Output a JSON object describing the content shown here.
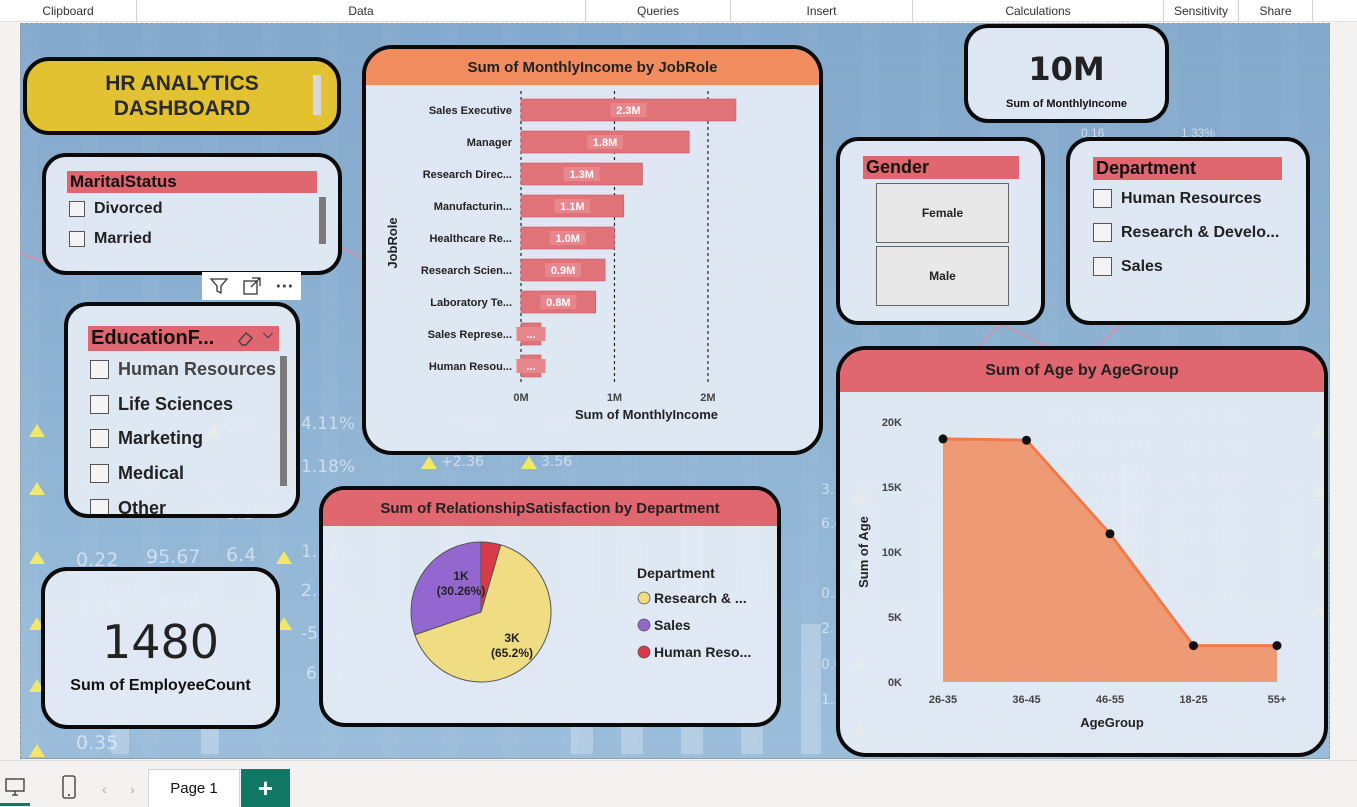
{
  "ribbon": {
    "groups": [
      "Clipboard",
      "Data",
      "Queries",
      "Insert",
      "Calculations",
      "Sensitivity",
      "Share"
    ]
  },
  "header": {
    "title_line1": "HR ANALYTICS",
    "title_line2": "DASHBOARD"
  },
  "kpis": {
    "monthly_income_value": "10M",
    "monthly_income_label": "Sum of MonthlyIncome",
    "employee_count_value": "1480",
    "employee_count_label": "Sum of EmployeeCount"
  },
  "slicers": {
    "marital_status": {
      "title": "MaritalStatus",
      "items": [
        "Divorced",
        "Married"
      ]
    },
    "education_field": {
      "title": "EducationF...",
      "items": [
        "Human Resources",
        "Life Sciences",
        "Marketing",
        "Medical",
        "Other"
      ]
    },
    "gender": {
      "title": "Gender",
      "items": [
        "Female",
        "Male"
      ]
    },
    "department": {
      "title": "Department",
      "items": [
        "Human Resources",
        "Research & Develo...",
        "Sales"
      ]
    }
  },
  "colors": {
    "title_yellow": "#e3c232",
    "header_red": "#e06670",
    "bar_red": "#e0727a",
    "area_orange": "#f08c5e",
    "pie_purple": "#9467d0",
    "pie_yellow": "#f0dc82",
    "pie_red": "#d93b48",
    "income_title_orange": "#f08c5e"
  },
  "chart_data": [
    {
      "type": "bar",
      "orientation": "horizontal",
      "title": "Sum of MonthlyIncome by JobRole",
      "xlabel": "Sum of MonthlyIncome",
      "ylabel": "JobRole",
      "categories": [
        "Sales Executive",
        "Manager",
        "Research Direc...",
        "Manufacturin...",
        "Healthcare Re...",
        "Research Scien...",
        "Laboratory Te...",
        "Sales Represe...",
        "Human Resou..."
      ],
      "values": [
        2300000,
        1800000,
        1300000,
        1100000,
        1000000,
        900000,
        800000,
        200000,
        200000
      ],
      "data_labels": [
        "2.3M",
        "1.8M",
        "1.3M",
        "1.1M",
        "1.0M",
        "0.9M",
        "0.8M",
        "...",
        "..."
      ],
      "xticks": [
        "0M",
        "1M",
        "2M"
      ],
      "xlim": [
        0,
        2600000
      ],
      "grid": true
    },
    {
      "type": "pie",
      "title": "Sum of RelationshipSatisfaction by Department",
      "legend_title": "Department",
      "legend": [
        "Research & ...",
        "Sales",
        "Human Reso..."
      ],
      "values": [
        65.2,
        30.26,
        4.54
      ],
      "data_labels": [
        {
          "value": "3K",
          "pct": "(65.2%)"
        },
        {
          "value": "1K",
          "pct": "(30.26%)"
        },
        {
          "value": "",
          "pct": ""
        }
      ],
      "legend_position": "right"
    },
    {
      "type": "area",
      "title": "Sum of Age by AgeGroup",
      "xlabel": "AgeGroup",
      "ylabel": "Sum of Age",
      "categories": [
        "26-35",
        "36-45",
        "46-55",
        "18-25",
        "55+"
      ],
      "values": [
        18700,
        18600,
        11400,
        2800,
        2800
      ],
      "yticks": [
        "0K",
        "5K",
        "10K",
        "15K",
        "20K"
      ],
      "ylim": [
        0,
        20000
      ],
      "grid": false
    }
  ],
  "footer": {
    "page_tab": "Page 1",
    "add_label": "+"
  }
}
